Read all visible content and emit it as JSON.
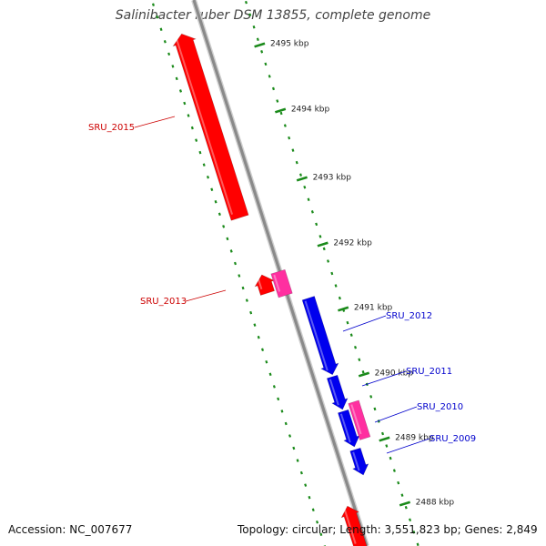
{
  "title": "Salinibacter ruber DSM 13855, complete genome",
  "footer": {
    "accession": "Accession: NC_007677",
    "summary": "Topology: circular; Length: 3,551,823 bp; Genes: 2,849"
  },
  "colors": {
    "backbone": "#8a8a8a",
    "ticks": "#1a8a1a",
    "forward_gene": "#ff0000",
    "forward_gene_alt": "#ff2fa0",
    "reverse_gene": "#0000ee",
    "reverse_gene_alt": "#ff2fa0",
    "label_forward": "#cc0000",
    "label_reverse": "#0000cc"
  },
  "scale": {
    "ticks": [
      {
        "label": "2495 kbp"
      },
      {
        "label": "2494 kbp"
      },
      {
        "label": "2493 kbp"
      },
      {
        "label": "2492 kbp"
      },
      {
        "label": "2491 kbp"
      },
      {
        "label": "2490 kbp"
      },
      {
        "label": "2489 kbp"
      },
      {
        "label": "2488 kbp"
      }
    ]
  },
  "genes": [
    {
      "name": "SRU_2015",
      "strand": "forward",
      "labeled": true
    },
    {
      "name": "",
      "strand": "forward",
      "labeled": false
    },
    {
      "name": "SRU_2013",
      "strand": "forward",
      "labeled": true
    },
    {
      "name": "SRU_2012",
      "strand": "reverse",
      "labeled": true
    },
    {
      "name": "",
      "strand": "reverse",
      "labeled": false
    },
    {
      "name": "SRU_2011",
      "strand": "reverse",
      "labeled": true
    },
    {
      "name": "SRU_2010",
      "strand": "reverse",
      "labeled": true
    },
    {
      "name": "SRU_2009",
      "strand": "reverse",
      "labeled": true
    },
    {
      "name": "",
      "strand": "forward",
      "labeled": false
    }
  ]
}
